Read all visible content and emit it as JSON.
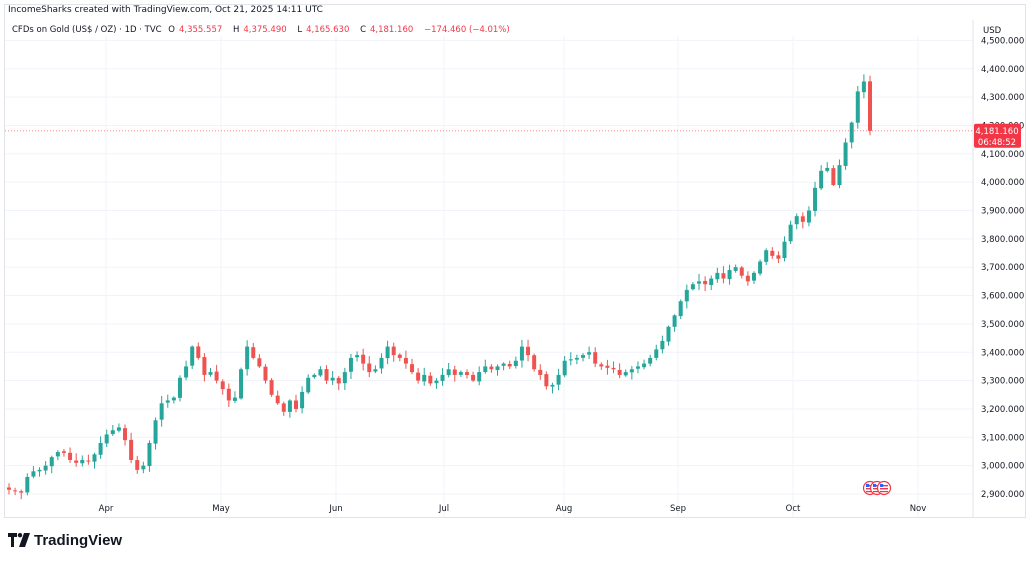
{
  "attribution": "IncomeSharks created with TradingView.com, Oct 21, 2025 14:11 UTC",
  "legend": {
    "symbol": "CFDs on Gold (US$ / OZ) · 1D · TVC",
    "open_label": "O",
    "open_value": "4,355.557",
    "high_label": "H",
    "high_value": "4,375.490",
    "low_label": "L",
    "low_value": "4,165.630",
    "close_label": "C",
    "close_value": "4,181.160",
    "change": "−174.460 (−4.01%)"
  },
  "currency": "USD",
  "price_tag": {
    "price": "4,181.160",
    "countdown": "06:48:52"
  },
  "brand": "TradingView",
  "colors": {
    "up": "#26a69a",
    "down": "#ef5350",
    "tag": "#f23645",
    "grid": "#f0f3fa"
  },
  "chart_data": {
    "type": "candlestick",
    "y_ticks": [
      "2,900.000",
      "3,000.000",
      "3,100.000",
      "3,200.000",
      "3,300.000",
      "3,400.000",
      "3,500.000",
      "3,600.000",
      "3,700.000",
      "3,800.000",
      "3,900.000",
      "4,000.000",
      "4,100.000",
      "4,200.000",
      "4,300.000",
      "4,400.000",
      "4,500.000"
    ],
    "ylim": [
      2880,
      4530
    ],
    "x_ticks": [
      "Apr",
      "May",
      "Jun",
      "Jul",
      "Aug",
      "Sep",
      "Oct",
      "Nov"
    ],
    "close": [
      2915,
      2910,
      2905,
      2960,
      2980,
      2985,
      3000,
      3030,
      3048,
      3045,
      3020,
      3010,
      3020,
      3015,
      3040,
      3080,
      3110,
      3125,
      3135,
      3090,
      3020,
      2985,
      3000,
      3080,
      3160,
      3220,
      3230,
      3240,
      3310,
      3350,
      3420,
      3380,
      3320,
      3330,
      3300,
      3270,
      3230,
      3240,
      3340,
      3420,
      3380,
      3350,
      3300,
      3250,
      3220,
      3190,
      3230,
      3200,
      3260,
      3310,
      3320,
      3340,
      3300,
      3310,
      3290,
      3330,
      3380,
      3390,
      3360,
      3330,
      3340,
      3380,
      3420,
      3390,
      3380,
      3360,
      3330,
      3300,
      3320,
      3290,
      3300,
      3320,
      3340,
      3320,
      3330,
      3320,
      3300,
      3330,
      3350,
      3340,
      3350,
      3360,
      3350,
      3370,
      3420,
      3390,
      3340,
      3320,
      3280,
      3285,
      3320,
      3370,
      3375,
      3380,
      3390,
      3400,
      3360,
      3350,
      3345,
      3340,
      3320,
      3330,
      3340,
      3350,
      3360,
      3380,
      3410,
      3440,
      3490,
      3530,
      3580,
      3620,
      3640,
      3650,
      3640,
      3660,
      3680,
      3660,
      3690,
      3700,
      3670,
      3650,
      3680,
      3720,
      3760,
      3740,
      3730,
      3790,
      3850,
      3880,
      3860,
      3900,
      3980,
      4040,
      4050,
      3990,
      4060,
      4140,
      4210,
      4320,
      4355,
      4181
    ]
  }
}
